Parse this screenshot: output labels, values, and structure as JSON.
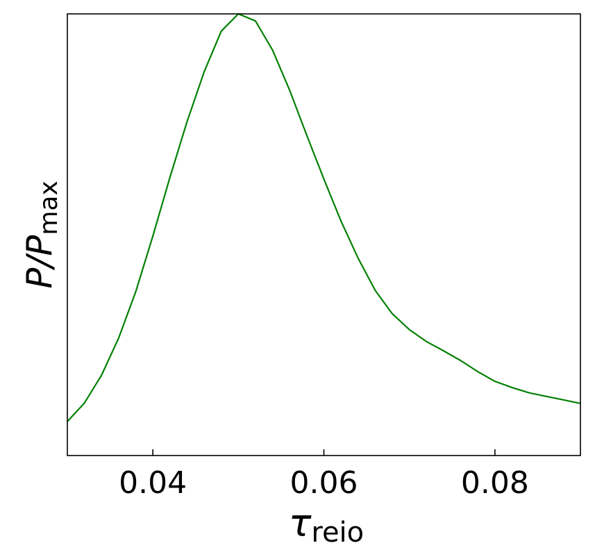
{
  "chart_data": {
    "type": "line",
    "xlabel": "τ",
    "xlabel_sub": "reio",
    "ylabel": "P/P",
    "ylabel_sub": "max",
    "x": [
      0.03,
      0.032,
      0.034,
      0.036,
      0.038,
      0.04,
      0.042,
      0.044,
      0.046,
      0.048,
      0.05,
      0.052,
      0.054,
      0.056,
      0.058,
      0.06,
      0.062,
      0.064,
      0.066,
      0.068,
      0.07,
      0.072,
      0.074,
      0.076,
      0.078,
      0.08,
      0.082,
      0.084,
      0.086,
      0.088,
      0.09
    ],
    "series": [
      {
        "color": "#008000",
        "values": [
          0.077,
          0.119,
          0.182,
          0.266,
          0.371,
          0.497,
          0.63,
          0.756,
          0.869,
          0.961,
          1.0,
          0.984,
          0.918,
          0.827,
          0.725,
          0.626,
          0.531,
          0.447,
          0.374,
          0.321,
          0.285,
          0.258,
          0.237,
          0.215,
          0.19,
          0.168,
          0.154,
          0.142,
          0.134,
          0.126,
          0.118
        ]
      }
    ],
    "xlim": [
      0.03,
      0.09
    ],
    "xticks": [
      0.04,
      0.06,
      0.08
    ],
    "ylim": [
      0,
      1
    ]
  }
}
